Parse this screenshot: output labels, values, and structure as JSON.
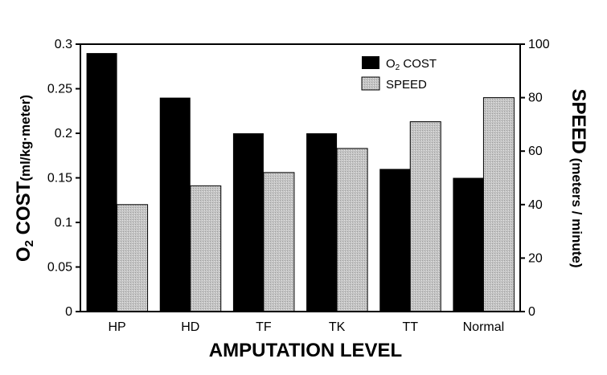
{
  "chart_data": {
    "type": "bar",
    "categories": [
      "HP",
      "HD",
      "TF",
      "TK",
      "TT",
      "Normal"
    ],
    "series": [
      {
        "name": "O2 COST",
        "values": [
          0.29,
          0.24,
          0.2,
          0.2,
          0.16,
          0.15
        ],
        "axis": "left",
        "color": "#000000"
      },
      {
        "name": "SPEED",
        "values": [
          40,
          47,
          52,
          61,
          71,
          80
        ],
        "axis": "right",
        "color": "#bdbdbd"
      }
    ],
    "legend_o2_main": "O",
    "legend_o2_sub": "2",
    "legend_o2_rest": " COST",
    "legend_speed": "SPEED",
    "xlabel": "AMPUTATION LEVEL",
    "ylabel_main": "O",
    "ylabel_sub": "2",
    "ylabel_rest": " COST",
    "ylabel_unit": "(ml/kg·meter)",
    "y2label_main": "SPEED",
    "y2label_unit": "(meters / minute)",
    "ylim": [
      0,
      0.3
    ],
    "yticks": [
      "0",
      "0.05",
      "0.1",
      "0.15",
      "0.2",
      "0.25",
      "0.3"
    ],
    "y2lim": [
      0,
      100
    ],
    "y2ticks": [
      "0",
      "20",
      "40",
      "60",
      "80",
      "100"
    ],
    "legend_position": "top-right",
    "grid": false
  }
}
